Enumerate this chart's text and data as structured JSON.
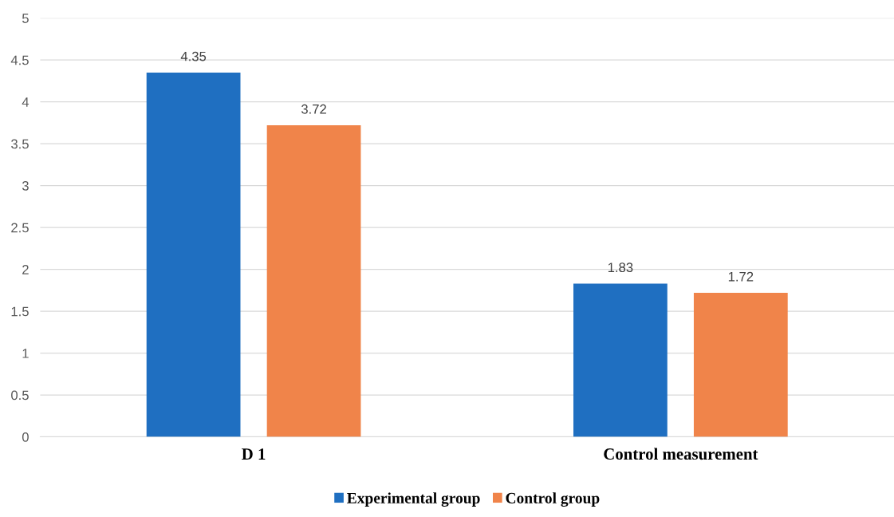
{
  "chart_data": {
    "type": "bar",
    "categories": [
      "D 1",
      "Control measurement"
    ],
    "series": [
      {
        "name": "Experimental group",
        "color": "#1f6fc1",
        "values": [
          4.35,
          1.83
        ]
      },
      {
        "name": "Control group",
        "color": "#f0844a",
        "values": [
          3.72,
          1.72
        ]
      }
    ],
    "ylim": [
      0,
      5
    ],
    "yticks": [
      0,
      0.5,
      1,
      1.5,
      2,
      2.5,
      3,
      3.5,
      4,
      4.5,
      5
    ],
    "grid": "y",
    "legend": "bottom",
    "data_labels": true
  }
}
